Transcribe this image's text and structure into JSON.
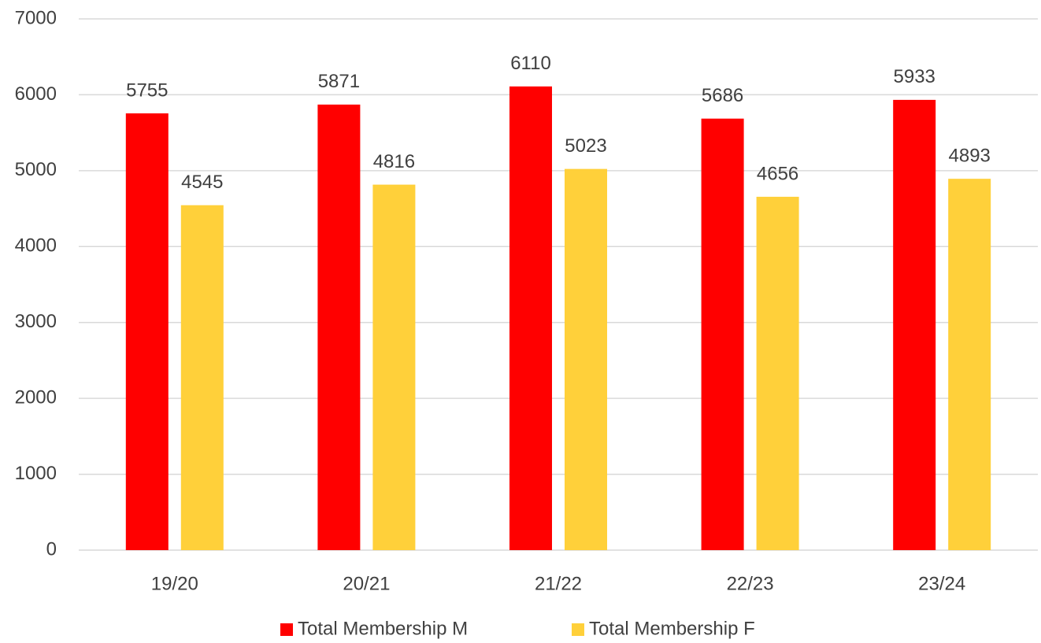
{
  "chart_data": {
    "type": "bar",
    "categories": [
      "19/20",
      "20/21",
      "21/22",
      "22/23",
      "23/24"
    ],
    "series": [
      {
        "name": "Total Membership M",
        "color": "#ff0000",
        "values": [
          5755,
          5871,
          6110,
          5686,
          5933
        ]
      },
      {
        "name": "Total Membership F",
        "color": "#ffd03a",
        "values": [
          4545,
          4816,
          5023,
          4656,
          4893
        ]
      }
    ],
    "ylim": [
      0,
      7000
    ],
    "yticks": [
      0,
      1000,
      2000,
      3000,
      4000,
      5000,
      6000,
      7000
    ],
    "grid": true,
    "legend": "bottom"
  }
}
